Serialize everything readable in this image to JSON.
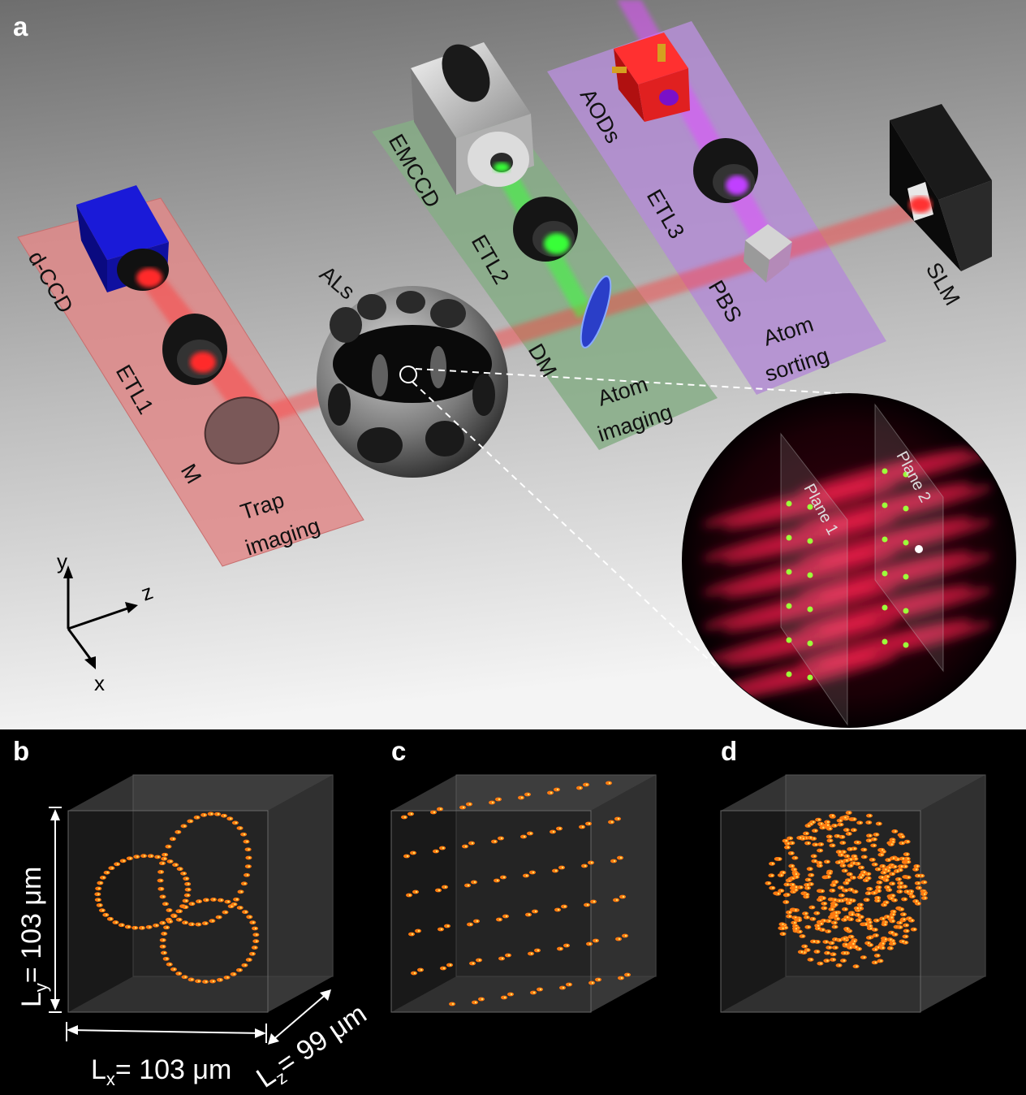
{
  "panels": {
    "a": "a",
    "b": "b",
    "c": "c",
    "d": "d"
  },
  "trap_imaging": {
    "title_line1": "Trap",
    "title_line2": "imaging",
    "camera": "d-CCD",
    "lens": "ETL1",
    "mirror": "M",
    "color": "#e08a8a"
  },
  "atom_imaging": {
    "title_line1": "Atom",
    "title_line2": "imaging",
    "camera": "EMCCD",
    "lens": "ETL2",
    "dichroic": "DM",
    "color": "#7fa882"
  },
  "atom_sorting": {
    "title_line1": "Atom",
    "title_line2": "sorting",
    "deflector": "AODs",
    "lens": "ETL3",
    "splitter": "PBS",
    "color": "#b38ad0"
  },
  "center": {
    "lenses": "ALs",
    "modulator": "SLM"
  },
  "inset": {
    "plane1": "Plane 1",
    "plane2": "Plane 2"
  },
  "axes": {
    "x": "x",
    "y": "y",
    "z": "z"
  },
  "dimensions": {
    "ly_var": "L",
    "ly_sub": "y",
    "ly_val": "= 103 μm",
    "lx_var": "L",
    "lx_sub": "x",
    "lx_val": "= 103 μm",
    "lz_var": "L",
    "lz_sub": "z",
    "lz_val": "= 99 μm"
  },
  "colors": {
    "trap_beam": "#ff2a2a",
    "imaging_beam": "#39ff39",
    "sorting_beam": "#d23cff",
    "atom": "#9dff3a"
  }
}
